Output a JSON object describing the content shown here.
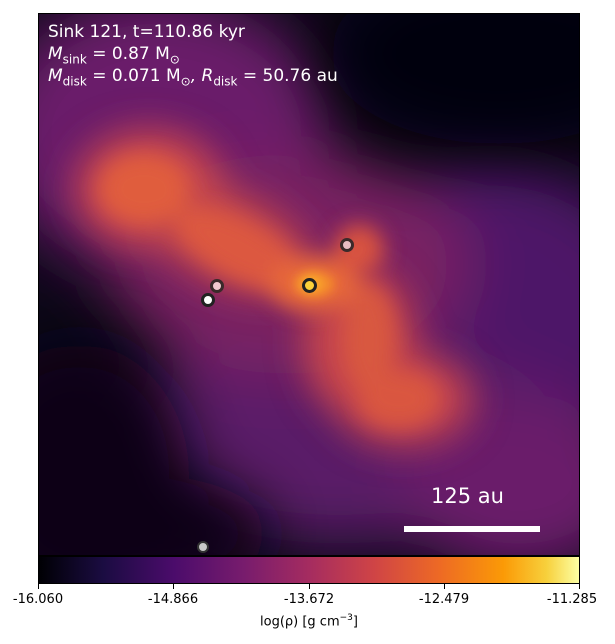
{
  "panel": {
    "title_line": "Sink 121, t=110.86 kyr",
    "sink_mass_label": "M",
    "sink_mass_sub": "sink",
    "sink_mass_value": " = 0.87 M",
    "sink_mass_unit_sub": "⊙",
    "disk_mass_label": "M",
    "disk_mass_sub": "disk",
    "disk_mass_value": " = 0.071 M",
    "disk_mass_unit_sub": "⊙",
    "disk_radius_prefix": ", R",
    "disk_radius_sub": "disk",
    "disk_radius_value": " = 50.76 au"
  },
  "scale_bar": {
    "label": "125 au"
  },
  "colorbar": {
    "colormap": "inferno",
    "ticks": [
      "-16.060",
      "-14.866",
      "-13.672",
      "-12.479",
      "-11.285"
    ],
    "label": "log(ρ) [g cm",
    "label_sup": "−3",
    "label_end": "]"
  },
  "sinks": [
    {
      "id": "central",
      "color": "#fbd13a"
    },
    {
      "id": "upper-right",
      "color": "#e8bcc4"
    },
    {
      "id": "left-upper",
      "color": "#f2c8cf"
    },
    {
      "id": "left-lower",
      "color": "#ffffff"
    },
    {
      "id": "bottom",
      "color": "#c9c9c9"
    }
  ],
  "colors": {
    "background_dark": "#0a0613",
    "filament": "#e0603a",
    "core": "#f89b2a"
  }
}
